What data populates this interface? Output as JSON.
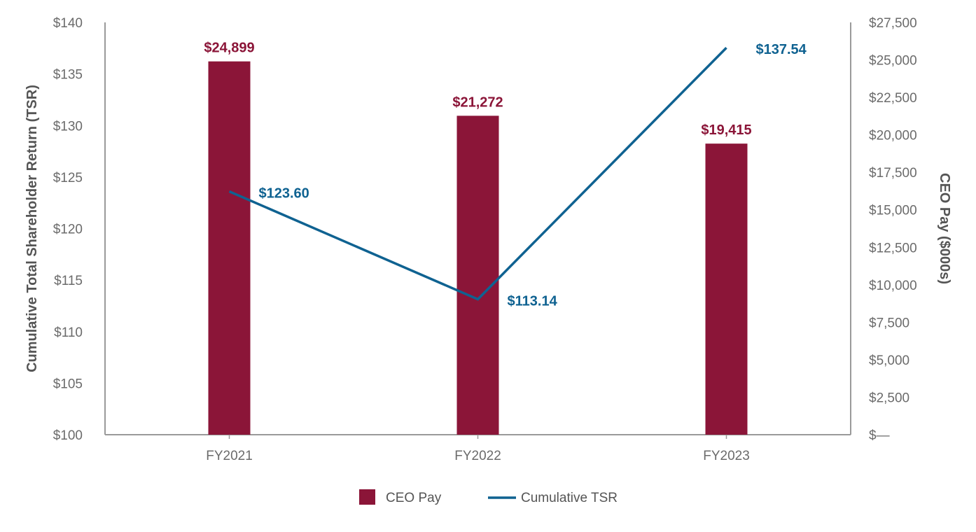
{
  "chart_data": {
    "type": "bar",
    "categories": [
      "FY2021",
      "FY2022",
      "FY2023"
    ],
    "series": [
      {
        "name": "CEO Pay",
        "kind": "bar",
        "axis": "right",
        "values": [
          24899,
          21272,
          19415
        ],
        "labels": [
          "$24,899",
          "$21,272",
          "$19,415"
        ],
        "color": "#8b1538"
      },
      {
        "name": "Cumulative TSR",
        "kind": "line",
        "axis": "left",
        "values": [
          123.6,
          113.14,
          137.54
        ],
        "labels": [
          "$123.60",
          "$113.14",
          "$137.54"
        ],
        "color": "#0f6291"
      }
    ],
    "left_axis": {
      "label": "Cumulative Total Shareholder Return (TSR)",
      "range": [
        100,
        140
      ],
      "ticks": [
        100,
        105,
        110,
        115,
        120,
        125,
        130,
        135,
        140
      ],
      "tick_labels": [
        "$100",
        "$105",
        "$110",
        "$115",
        "$120",
        "$125",
        "$130",
        "$135",
        "$140"
      ]
    },
    "right_axis": {
      "label": "CEO Pay ($000s)",
      "range": [
        0,
        27500
      ],
      "ticks": [
        0,
        2500,
        5000,
        7500,
        10000,
        12500,
        15000,
        17500,
        20000,
        22500,
        25000,
        27500
      ],
      "tick_labels": [
        "$—",
        "$2,500",
        "$5,000",
        "$7,500",
        "$10,000",
        "$12,500",
        "$15,000",
        "$17,500",
        "$20,000",
        "$22,500",
        "$25,000",
        "$27,500"
      ]
    },
    "legend": {
      "position": "bottom-center",
      "entries": [
        {
          "label": "CEO Pay",
          "kind": "bar",
          "color": "#8b1538"
        },
        {
          "label": "Cumulative TSR",
          "kind": "line",
          "color": "#0f6291"
        }
      ]
    },
    "grid": false,
    "title": ""
  }
}
